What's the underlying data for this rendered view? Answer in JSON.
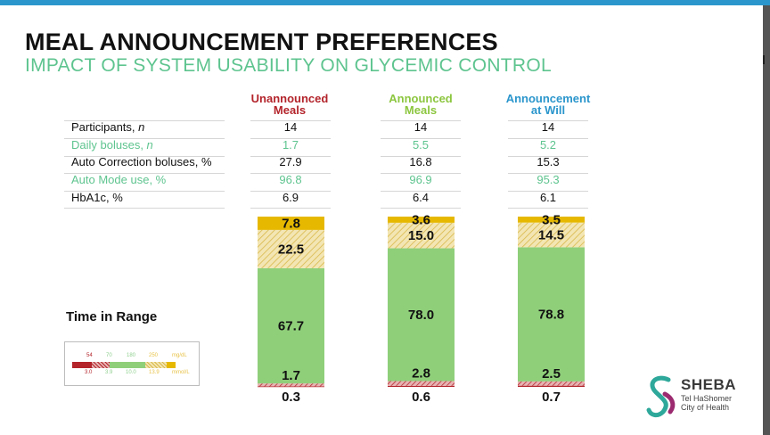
{
  "slide": {
    "title": "MEAL ANNOUNCEMENT PREFERENCES",
    "subtitle": "IMPACT OF SYSTEM USABILITY ON GLYCEMIC CONTROL"
  },
  "columns": [
    {
      "line1": "Unannounced",
      "line2": "Meals"
    },
    {
      "line1": "Announced",
      "line2": "Meals"
    },
    {
      "line1": "Announcement",
      "line2": "at Will"
    }
  ],
  "table": {
    "rows": [
      {
        "label_text": "Participants, ",
        "label_italic": "n",
        "values": [
          "14",
          "14",
          "14"
        ]
      },
      {
        "label_text": "Daily boluses, ",
        "label_italic": "n",
        "values": [
          "1.7",
          "5.5",
          "5.2"
        ]
      },
      {
        "label_text": "Auto Correction boluses, %",
        "label_italic": "",
        "values": [
          "27.9",
          "16.8",
          "15.3"
        ]
      },
      {
        "label_text": "Auto Mode use, %",
        "label_italic": "",
        "values": [
          "96.8",
          "96.9",
          "95.3"
        ]
      },
      {
        "label_text": "HbA1c, %",
        "label_italic": "",
        "values": [
          "6.9",
          "6.4",
          "6.1"
        ]
      }
    ]
  },
  "chart_data": {
    "type": "bar",
    "stacked": true,
    "row_label": "Time in Range",
    "categories": [
      "Unannounced Meals",
      "Announced Meals",
      "Announcement at Will"
    ],
    "series": [
      {
        "values": [
          0.3,
          0.6,
          0.7
        ],
        "color": "#b3242b",
        "pattern": "solid"
      },
      {
        "values": [
          1.7,
          2.8,
          2.5
        ],
        "color": "#d06a6a",
        "pattern": "hatched"
      },
      {
        "values": [
          67.7,
          78.0,
          78.8
        ],
        "color": "#8fcf7a",
        "pattern": "solid"
      },
      {
        "values": [
          22.5,
          15.0,
          14.5
        ],
        "color": "#e8d38c",
        "pattern": "hatched"
      },
      {
        "values": [
          7.8,
          3.6,
          3.5
        ],
        "color": "#e6b800",
        "pattern": "solid"
      }
    ],
    "ylim": [
      0,
      100
    ],
    "legend": {
      "thresholds_mgdl": [
        "54",
        "70",
        "180",
        "250"
      ],
      "unit_mgdl": "mg/dL",
      "thresholds_mmol": [
        "3.0",
        "3.9",
        "10.0",
        "13.9"
      ],
      "unit_mmol": "mmol/L",
      "placement": "bottom-left"
    }
  },
  "logo": {
    "name": "SHEBA",
    "line1": "Tel HaShomer",
    "line2": "City of Health"
  },
  "colors": {
    "accent_blue": "#2b96cc",
    "title_green": "#5ec48f",
    "header_red": "#b3242b",
    "header_green": "#8cc63f"
  }
}
